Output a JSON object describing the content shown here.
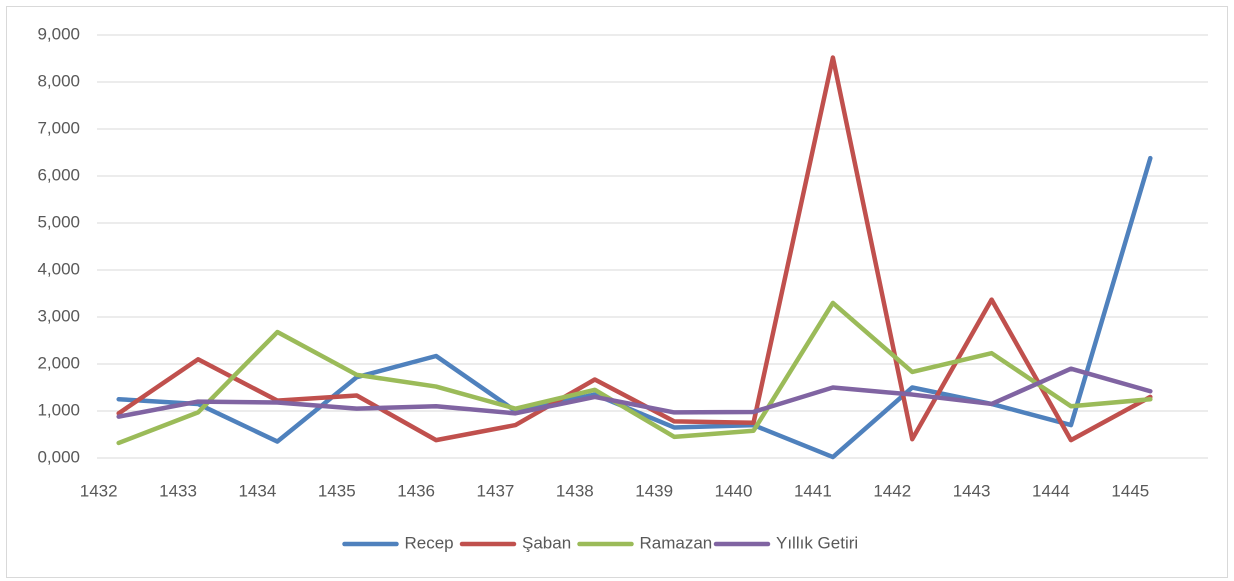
{
  "chart_data": {
    "type": "line",
    "categories": [
      "1432",
      "1433",
      "1434",
      "1435",
      "1436",
      "1437",
      "1438",
      "1439",
      "1440",
      "1441",
      "1442",
      "1443",
      "1444",
      "1445"
    ],
    "series": [
      {
        "name": "Recep",
        "color": "#4f81bd",
        "values": [
          1.25,
          1.15,
          0.35,
          1.72,
          2.17,
          1.0,
          1.35,
          0.65,
          0.7,
          0.02,
          1.5,
          1.15,
          0.7,
          6.38
        ]
      },
      {
        "name": "Şaban",
        "color": "#c0504d",
        "values": [
          0.95,
          2.1,
          1.22,
          1.33,
          0.38,
          0.7,
          1.67,
          0.78,
          0.75,
          8.52,
          0.4,
          3.37,
          0.38,
          1.3
        ]
      },
      {
        "name": "Ramazan",
        "color": "#9bbb59",
        "values": [
          0.32,
          0.97,
          2.68,
          1.77,
          1.52,
          1.05,
          1.45,
          0.45,
          0.58,
          3.3,
          1.83,
          2.23,
          1.1,
          1.25
        ]
      },
      {
        "name": "Yıllık Getiri",
        "color": "#8064a2",
        "values": [
          0.88,
          1.2,
          1.18,
          1.05,
          1.1,
          0.95,
          1.3,
          0.97,
          0.98,
          1.5,
          1.35,
          1.15,
          1.9,
          1.42
        ]
      }
    ],
    "ylim": [
      0,
      9
    ],
    "yticks": [
      {
        "value": 0,
        "label": "0,000"
      },
      {
        "value": 1,
        "label": "1,000"
      },
      {
        "value": 2,
        "label": "2,000"
      },
      {
        "value": 3,
        "label": "3,000"
      },
      {
        "value": 4,
        "label": "4,000"
      },
      {
        "value": 5,
        "label": "5,000"
      },
      {
        "value": 6,
        "label": "6,000"
      },
      {
        "value": 7,
        "label": "7,000"
      },
      {
        "value": 8,
        "label": "8,000"
      },
      {
        "value": 9,
        "label": "9,000"
      }
    ],
    "grid": true,
    "legend": "bottom"
  }
}
